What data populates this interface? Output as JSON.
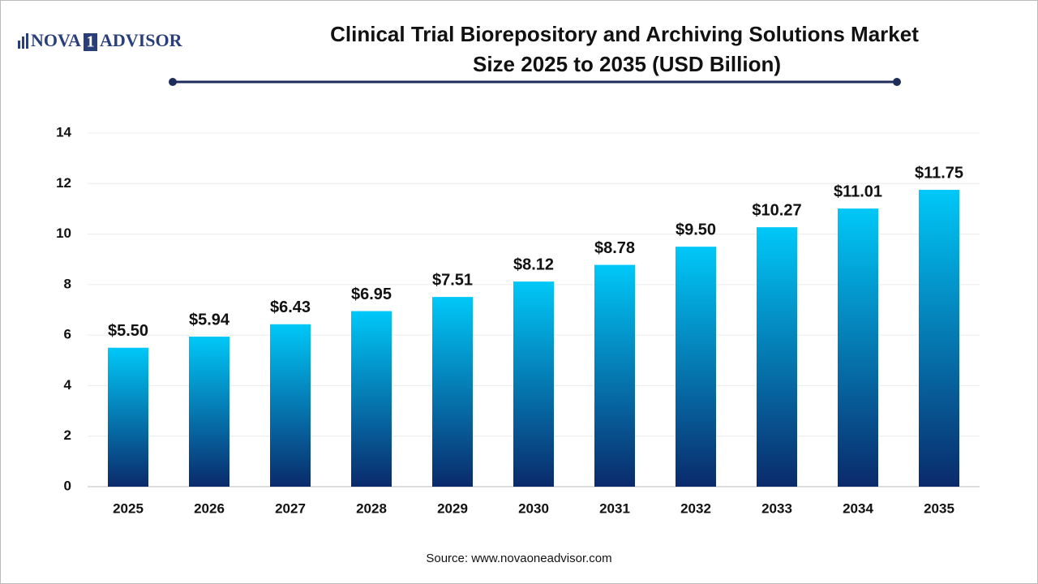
{
  "logo": {
    "left": "NOVA",
    "mark": "1",
    "right": "ADVISOR"
  },
  "chart_data": {
    "type": "bar",
    "title": [
      "Clinical Trial Biorepository and Archiving Solutions Market",
      "Size 2025 to 2035 (USD Billion)"
    ],
    "categories": [
      "2025",
      "2026",
      "2027",
      "2028",
      "2029",
      "2030",
      "2031",
      "2032",
      "2033",
      "2034",
      "2035"
    ],
    "values": [
      5.5,
      5.94,
      6.43,
      6.95,
      7.51,
      8.12,
      8.78,
      9.5,
      10.27,
      11.01,
      11.75
    ],
    "value_labels": [
      "$5.50",
      "$5.94",
      "$6.43",
      "$6.95",
      "$7.51",
      "$8.12",
      "$8.78",
      "$9.50",
      "$10.27",
      "$11.01",
      "$11.75"
    ],
    "color": [
      "#00c8f8",
      "#0a2a6b"
    ],
    "ylim": [
      0,
      14
    ],
    "yticks": [
      0,
      2,
      4,
      6,
      8,
      10,
      12,
      14
    ],
    "grid": true,
    "source": "Source: www.novaoneadvisor.com"
  }
}
